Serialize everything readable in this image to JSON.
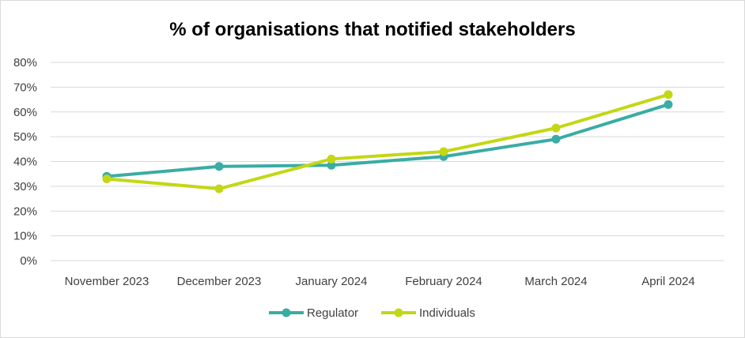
{
  "chart_data": {
    "type": "line",
    "title": "% of organisations that notified stakeholders",
    "xlabel": "",
    "ylabel": "",
    "categories": [
      "November 2023",
      "December 2023",
      "January 2024",
      "February 2024",
      "March 2024",
      "April 2024"
    ],
    "y_ticks": [
      "0%",
      "10%",
      "20%",
      "30%",
      "40%",
      "50%",
      "60%",
      "70%",
      "80%"
    ],
    "ylim": [
      0,
      80
    ],
    "grid": true,
    "legend_position": "bottom",
    "series": [
      {
        "name": "Regulator",
        "color": "#3aaca4",
        "values": [
          34,
          38,
          38.5,
          42,
          49,
          63
        ]
      },
      {
        "name": "Individuals",
        "color": "#c3d714",
        "values": [
          33,
          29,
          41,
          44,
          53.5,
          67
        ]
      }
    ]
  }
}
